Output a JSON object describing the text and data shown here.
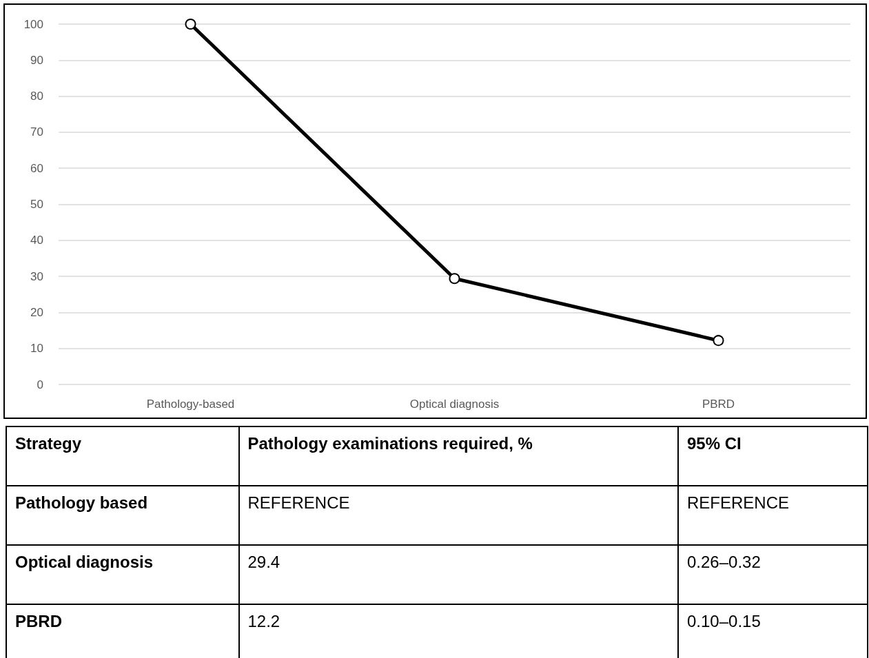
{
  "chart_data": {
    "type": "line",
    "categories": [
      "Pathology-based",
      "Optical diagnosis",
      "PBRD"
    ],
    "series": [
      {
        "color": "#000000",
        "values": [
          100,
          29.4,
          12.2
        ]
      }
    ],
    "ylim": [
      0,
      100
    ],
    "yticks": [
      0,
      10,
      20,
      30,
      40,
      50,
      60,
      70,
      80,
      90,
      100
    ],
    "grid": "y",
    "marker": "circle",
    "line_style": "solid",
    "annotations": [
      "Strategy",
      "Pathology examinations required, %",
      "95% CI",
      "Pathology based",
      "REFERENCE",
      "REFERENCE",
      "Optical diagnosis",
      "29.4",
      "0.26–0.32",
      "PBRD",
      "12.2",
      "0.10–0.15"
    ]
  }
}
